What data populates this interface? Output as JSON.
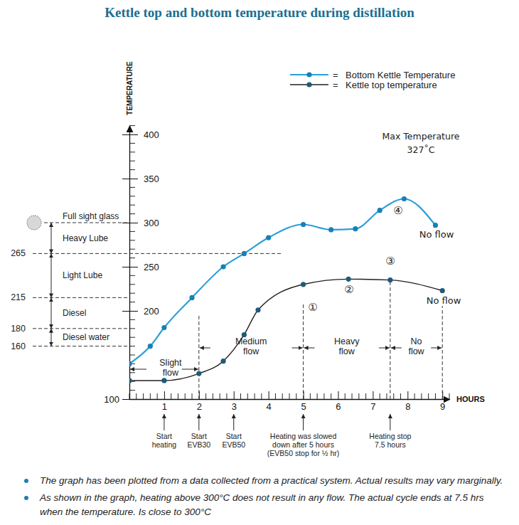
{
  "chart_data": {
    "type": "line",
    "title": "Kettle top and bottom temperature during distillation",
    "y_label": "TEMPERATURE",
    "x_label": "HOURS",
    "xlim": [
      0,
      9.2
    ],
    "xticks": [
      1,
      2,
      3,
      4,
      5,
      6,
      7,
      8,
      9
    ],
    "ylim": [
      100,
      410
    ],
    "yticks": [
      100,
      200,
      250,
      300,
      350,
      400
    ],
    "legend": "top-right",
    "legend_separator": "=",
    "series": [
      {
        "name": "Bottom Kettle Temperature",
        "color": "#2b9fd8",
        "marker": "circle",
        "line_style": "solid",
        "x": [
          0,
          0.6,
          1,
          1.8,
          2.7,
          3.3,
          4,
          5,
          5.8,
          6.5,
          7.2,
          7.9,
          8.8
        ],
        "values": [
          140,
          160,
          181,
          215,
          250,
          265,
          283,
          298,
          292,
          293,
          314,
          327,
          297
        ]
      },
      {
        "name": "Kettle top temperature",
        "color": "#231f20",
        "marker": "circle",
        "line_style": "solid",
        "x": [
          0,
          1,
          2,
          2.7,
          3.3,
          3.7,
          5,
          6.3,
          7.5,
          9
        ],
        "values": [
          121,
          121,
          129,
          143,
          173,
          201,
          230,
          236,
          235,
          223
        ]
      }
    ],
    "levels": [
      {
        "value": 300,
        "label": "Full sight glass"
      },
      {
        "value": 265,
        "end": 4.4
      },
      {
        "value": 215
      },
      {
        "value": 180
      },
      {
        "value": 160
      }
    ],
    "bands": [
      {
        "label": "Heavy Lube",
        "from": 265,
        "to": 300
      },
      {
        "label": "Light Lube",
        "from": 215,
        "to": 265
      },
      {
        "label": "Diesel",
        "from": 180,
        "to": 215
      },
      {
        "label": "Diesel water",
        "from": 160,
        "to": 180
      }
    ],
    "phases": [
      {
        "label": [
          "Slight",
          "flow"
        ],
        "from": 0,
        "to": 2
      },
      {
        "label": [
          "Medium",
          "flow"
        ],
        "from": 2,
        "to": 5
      },
      {
        "label": [
          "Heavy",
          "flow"
        ],
        "from": 5,
        "to": 7.5
      },
      {
        "label": [
          "No",
          "flow"
        ],
        "from": 7.5,
        "to": 9
      }
    ],
    "events": [
      {
        "x": 1,
        "label": [
          "Start",
          "heating"
        ]
      },
      {
        "x": 2,
        "label": [
          "Start",
          "EVB30"
        ]
      },
      {
        "x": 3,
        "label": [
          "Start",
          "EVB50"
        ]
      },
      {
        "x": 5,
        "label": [
          "Heating was slowed",
          "down after 5 hours",
          "(EVB50 stop for ½ hr)"
        ]
      },
      {
        "x": 7.5,
        "label": [
          "Heating stop",
          "7.5 hours"
        ]
      }
    ],
    "annotations": [
      "①",
      "②",
      "③",
      "④",
      "Max Temperature",
      "327˚C",
      "No flow",
      "No flow"
    ],
    "notes": [
      "The graph has been plotted from a data collected from a practical system. Actual results may vary marginally.",
      "As shown in the graph, heating above 300°C does not result in any flow.  The actual cycle ends at 7.5 hrs when the temperature. Is close to 300°C"
    ]
  }
}
